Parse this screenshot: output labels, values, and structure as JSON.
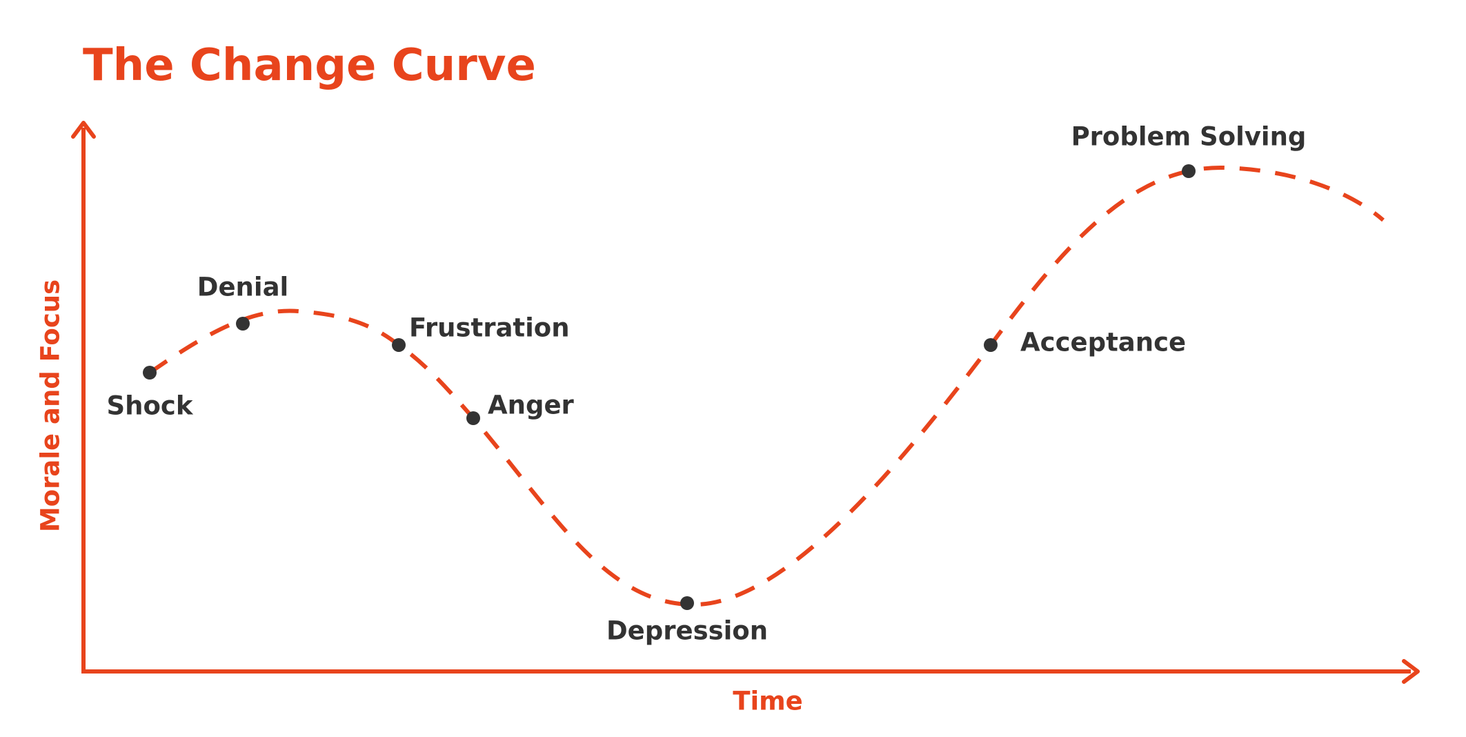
{
  "title": "The Change Curve",
  "y_axis_label": "Morale and Focus",
  "x_axis_label": "Time",
  "stages": [
    "Shock",
    "Denial",
    "Frustration",
    "Anger",
    "Depression",
    "Acceptance",
    "Problem Solving"
  ]
}
